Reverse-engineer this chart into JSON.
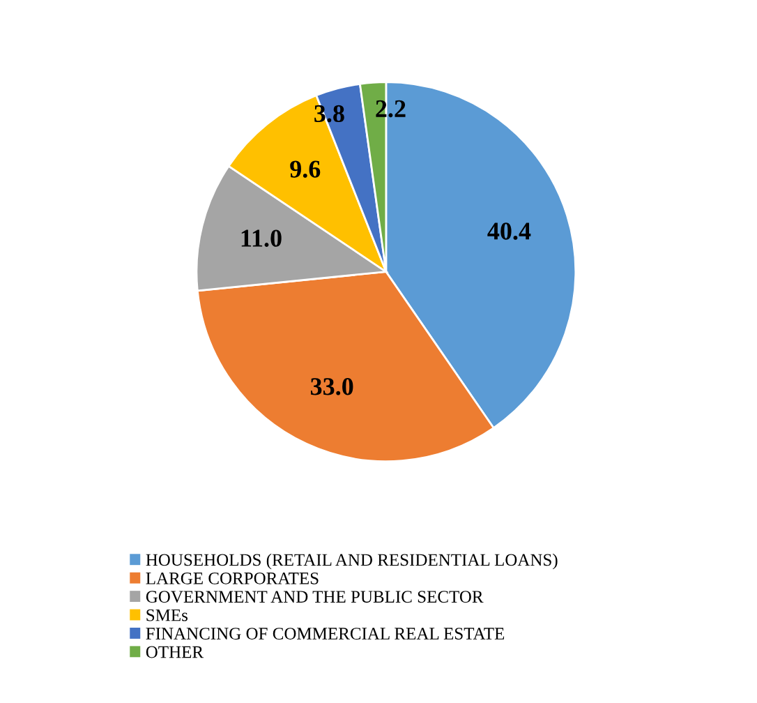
{
  "chart_data": {
    "type": "pie",
    "categories": [
      "HOUSEHOLDS (RETAIL AND RESIDENTIAL LOANS)",
      "LARGE CORPORATES",
      "GOVERNMENT AND THE PUBLIC SECTOR",
      "SMEs",
      "FINANCING OF COMMERCIAL REAL ESTATE",
      "OTHER"
    ],
    "values": [
      40.4,
      33.0,
      11.0,
      9.6,
      3.8,
      2.2
    ],
    "value_labels": [
      "40.4",
      "33.0",
      "11.0",
      "9.6",
      "3.8",
      "2.2"
    ],
    "colors": [
      "#5b9bd5",
      "#ed7d31",
      "#a5a5a5",
      "#ffc000",
      "#4472c4",
      "#70ad47"
    ],
    "legend": "bottom"
  }
}
